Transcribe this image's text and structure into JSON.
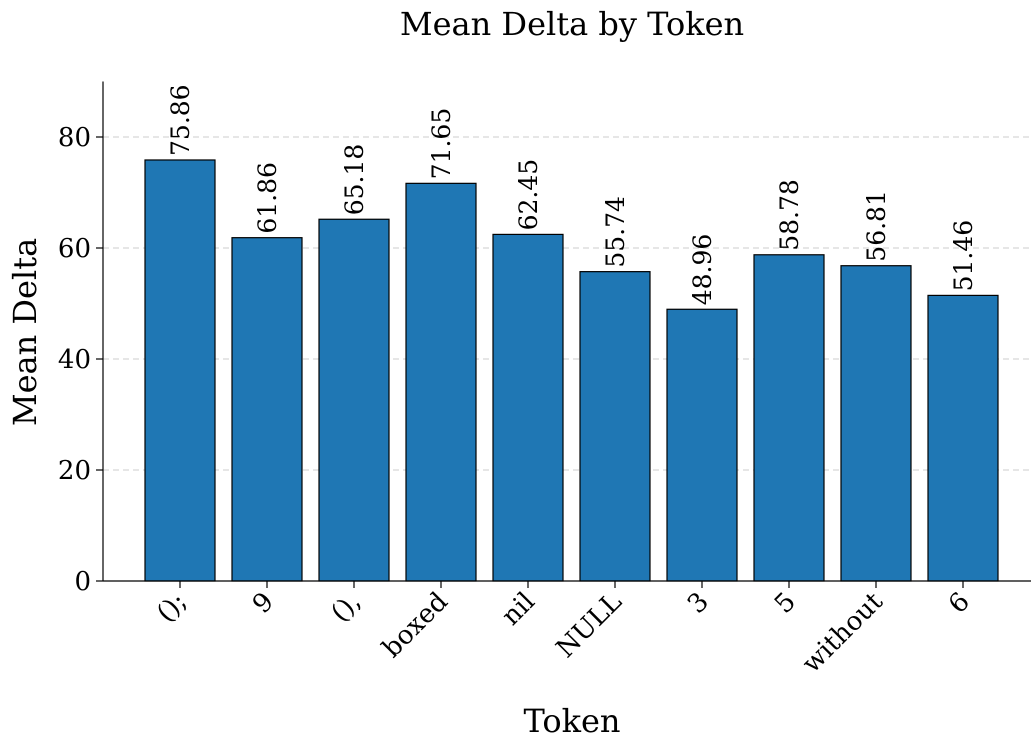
{
  "chart_data": {
    "type": "bar",
    "title": "Mean Delta by Token",
    "x_label": "Token",
    "y_label": "Mean Delta",
    "categories": [
      "();",
      "9",
      "(),",
      "boxed",
      "nil",
      "NULL",
      "3",
      "5",
      "without",
      "6"
    ],
    "values": [
      75.86,
      61.86,
      65.18,
      71.65,
      62.45,
      55.74,
      48.96,
      58.78,
      56.81,
      51.46
    ],
    "color": "#1f77b4",
    "ylim": [
      0,
      90
    ],
    "yticks": [
      0,
      20,
      40,
      60,
      80
    ],
    "grid": true
  }
}
